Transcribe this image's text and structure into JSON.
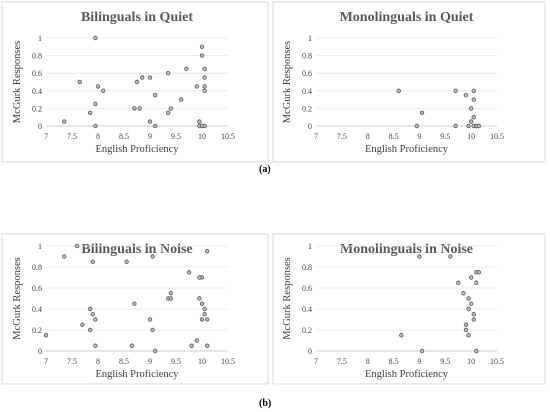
{
  "panel_labels": {
    "a": "(a)",
    "b": "(b)"
  },
  "chart_data": [
    {
      "type": "scatter",
      "title": "Bilinguals in Quiet",
      "xlabel": "English Proficiency",
      "ylabel": "McGurk Responses",
      "xlim": [
        7,
        10.5
      ],
      "ylim": [
        0,
        1
      ],
      "xticks": [
        "7",
        "7.5",
        "8",
        "8.5",
        "9",
        "9.5",
        "10",
        "10.5"
      ],
      "yticks": [
        "0",
        "0.2",
        "0.4",
        "0.6",
        "0.8",
        "1"
      ],
      "points": [
        [
          7.35,
          0.05
        ],
        [
          7.65,
          0.5
        ],
        [
          7.85,
          0.15
        ],
        [
          7.95,
          0.0
        ],
        [
          7.95,
          1.0
        ],
        [
          7.95,
          0.25
        ],
        [
          8.0,
          0.45
        ],
        [
          8.1,
          0.4
        ],
        [
          8.7,
          0.2
        ],
        [
          8.75,
          0.5
        ],
        [
          8.8,
          0.2
        ],
        [
          8.85,
          0.55
        ],
        [
          9.0,
          0.05
        ],
        [
          9.0,
          0.55
        ],
        [
          9.1,
          0.35
        ],
        [
          9.1,
          0.0
        ],
        [
          9.35,
          0.6
        ],
        [
          9.35,
          0.15
        ],
        [
          9.4,
          0.2
        ],
        [
          9.6,
          0.3
        ],
        [
          9.7,
          0.65
        ],
        [
          9.9,
          0.45
        ],
        [
          9.95,
          0.05
        ],
        [
          9.95,
          0.0
        ],
        [
          10.0,
          0.9
        ],
        [
          10.0,
          0.8
        ],
        [
          10.0,
          0.0
        ],
        [
          10.05,
          0.0
        ],
        [
          10.05,
          0.65
        ],
        [
          10.05,
          0.55
        ],
        [
          10.05,
          0.45
        ],
        [
          10.05,
          0.4
        ]
      ]
    },
    {
      "type": "scatter",
      "title": "Monolinguals in Quiet",
      "xlabel": "English Proficiency",
      "ylabel": "McGurk Responses",
      "xlim": [
        7,
        10.5
      ],
      "ylim": [
        0,
        1
      ],
      "xticks": [
        "7",
        "7.5",
        "8",
        "8.5",
        "9",
        "9.5",
        "10",
        "10.5"
      ],
      "yticks": [
        "0",
        "0.2",
        "0.4",
        "0.6",
        "0.8",
        "1"
      ],
      "points": [
        [
          8.6,
          0.4
        ],
        [
          8.95,
          0.0
        ],
        [
          9.05,
          0.15
        ],
        [
          9.7,
          0.4
        ],
        [
          9.7,
          0.0
        ],
        [
          9.9,
          0.35
        ],
        [
          9.95,
          0.0
        ],
        [
          10.0,
          0.05
        ],
        [
          10.0,
          0.2
        ],
        [
          10.05,
          0.4
        ],
        [
          10.05,
          0.3
        ],
        [
          10.05,
          0.1
        ],
        [
          10.05,
          0.0
        ],
        [
          10.1,
          0.0
        ],
        [
          10.1,
          0.0
        ],
        [
          10.15,
          0.0
        ]
      ]
    },
    {
      "type": "scatter",
      "title": "Bilinguals in Noise",
      "xlabel": "English Proficiency",
      "ylabel": "McGurk Responses",
      "xlim": [
        7,
        10.5
      ],
      "ylim": [
        0,
        1
      ],
      "xticks": [
        "7",
        "7.5",
        "8",
        "8.5",
        "9",
        "9.5",
        "10",
        "10.5"
      ],
      "yticks": [
        "0",
        "0.2",
        "0.4",
        "0.6",
        "0.8",
        "1"
      ],
      "points": [
        [
          7.0,
          0.15
        ],
        [
          7.35,
          0.9
        ],
        [
          7.6,
          1.0
        ],
        [
          7.7,
          0.25
        ],
        [
          7.85,
          0.4
        ],
        [
          7.85,
          0.2
        ],
        [
          7.9,
          0.35
        ],
        [
          7.9,
          0.85
        ],
        [
          7.95,
          0.05
        ],
        [
          7.95,
          0.3
        ],
        [
          8.55,
          0.85
        ],
        [
          8.65,
          0.05
        ],
        [
          8.7,
          0.45
        ],
        [
          9.0,
          0.3
        ],
        [
          9.05,
          0.9
        ],
        [
          9.05,
          0.2
        ],
        [
          9.1,
          0.0
        ],
        [
          9.35,
          0.5
        ],
        [
          9.4,
          0.5
        ],
        [
          9.4,
          0.55
        ],
        [
          9.75,
          0.75
        ],
        [
          9.8,
          0.05
        ],
        [
          9.9,
          0.1
        ],
        [
          9.95,
          0.5
        ],
        [
          10.0,
          0.7
        ],
        [
          10.0,
          0.45
        ],
        [
          10.0,
          0.3
        ],
        [
          10.05,
          0.35
        ],
        [
          10.05,
          0.4
        ],
        [
          10.1,
          0.3
        ],
        [
          10.1,
          0.05
        ],
        [
          10.1,
          0.95
        ],
        [
          9.95,
          0.7
        ]
      ]
    },
    {
      "type": "scatter",
      "title": "Monolinguals in Noise",
      "xlabel": "English Proficiency",
      "ylabel": "McGurk Responses",
      "xlim": [
        7,
        10.5
      ],
      "ylim": [
        0,
        1
      ],
      "xticks": [
        "7",
        "7.5",
        "8",
        "8.5",
        "9",
        "9.5",
        "10",
        "10.5"
      ],
      "yticks": [
        "0",
        "0.2",
        "0.4",
        "0.6",
        "0.8",
        "1"
      ],
      "points": [
        [
          8.65,
          0.15
        ],
        [
          9.0,
          0.9
        ],
        [
          9.05,
          0.0
        ],
        [
          9.6,
          0.9
        ],
        [
          9.75,
          0.65
        ],
        [
          9.85,
          0.55
        ],
        [
          9.9,
          0.25
        ],
        [
          9.9,
          0.2
        ],
        [
          9.95,
          0.15
        ],
        [
          9.95,
          0.4
        ],
        [
          9.95,
          0.5
        ],
        [
          10.0,
          0.45
        ],
        [
          10.0,
          0.7
        ],
        [
          10.05,
          0.35
        ],
        [
          10.05,
          0.3
        ],
        [
          10.1,
          0.75
        ],
        [
          10.1,
          0.65
        ],
        [
          10.1,
          0.0
        ],
        [
          10.15,
          0.75
        ]
      ]
    }
  ]
}
